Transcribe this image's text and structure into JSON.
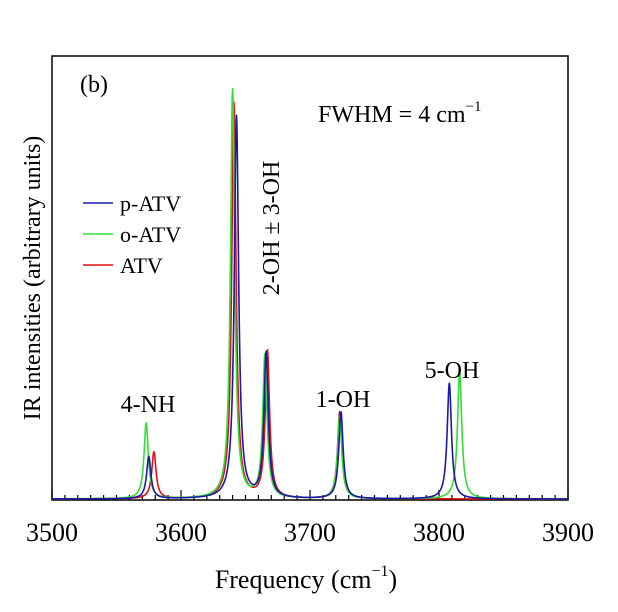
{
  "chart_data": {
    "type": "line",
    "panel_label": "(b)",
    "title": "",
    "xlabel": "Frequency (cm",
    "xlabel_sup": "−1",
    "xlabel_close": ")",
    "ylabel": "IR intensities (arbitrary units)",
    "xlim": [
      3500,
      3900
    ],
    "ylim": [
      0,
      1.0
    ],
    "xticks": [
      3500,
      3600,
      3700,
      3800,
      3900
    ],
    "xtick_labels": [
      "3500",
      "3600",
      "3700",
      "3800",
      "3900"
    ],
    "fwhm_text": "FWHM = 4 cm",
    "fwhm_sup": "−1",
    "fwhm_cm": 4,
    "legend": {
      "placement": "left-middle",
      "entries": [
        "p-ATV",
        "o-ATV",
        "ATV"
      ]
    },
    "annotations": [
      {
        "text": "4-NH",
        "x": 3573,
        "y": 0.26
      },
      {
        "text": "2-OH ± 3-OH",
        "x": 3665,
        "y": 0.48,
        "rotated": true
      },
      {
        "text": "1-OH",
        "x": 3723,
        "y": 0.24
      },
      {
        "text": "5-OH",
        "x": 3812,
        "y": 0.33
      }
    ],
    "series": [
      {
        "name": "p-ATV",
        "color": "#1a1aa6",
        "peaks": [
          [
            3575,
            0.095
          ],
          [
            3643,
            0.86
          ],
          [
            3666,
            0.325
          ],
          [
            3724,
            0.195
          ],
          [
            3808,
            0.26
          ]
        ]
      },
      {
        "name": "o-ATV",
        "color": "#33dd33",
        "peaks": [
          [
            3573,
            0.17
          ],
          [
            3640,
            0.92
          ],
          [
            3665,
            0.32
          ],
          [
            3723,
            0.185
          ],
          [
            3816,
            0.285
          ]
        ]
      },
      {
        "name": "ATV",
        "color": "#dd1111",
        "peaks": [
          [
            3579,
            0.105
          ],
          [
            3641,
            0.89
          ],
          [
            3667,
            0.33
          ],
          [
            3723,
            0.195
          ]
        ]
      }
    ]
  }
}
